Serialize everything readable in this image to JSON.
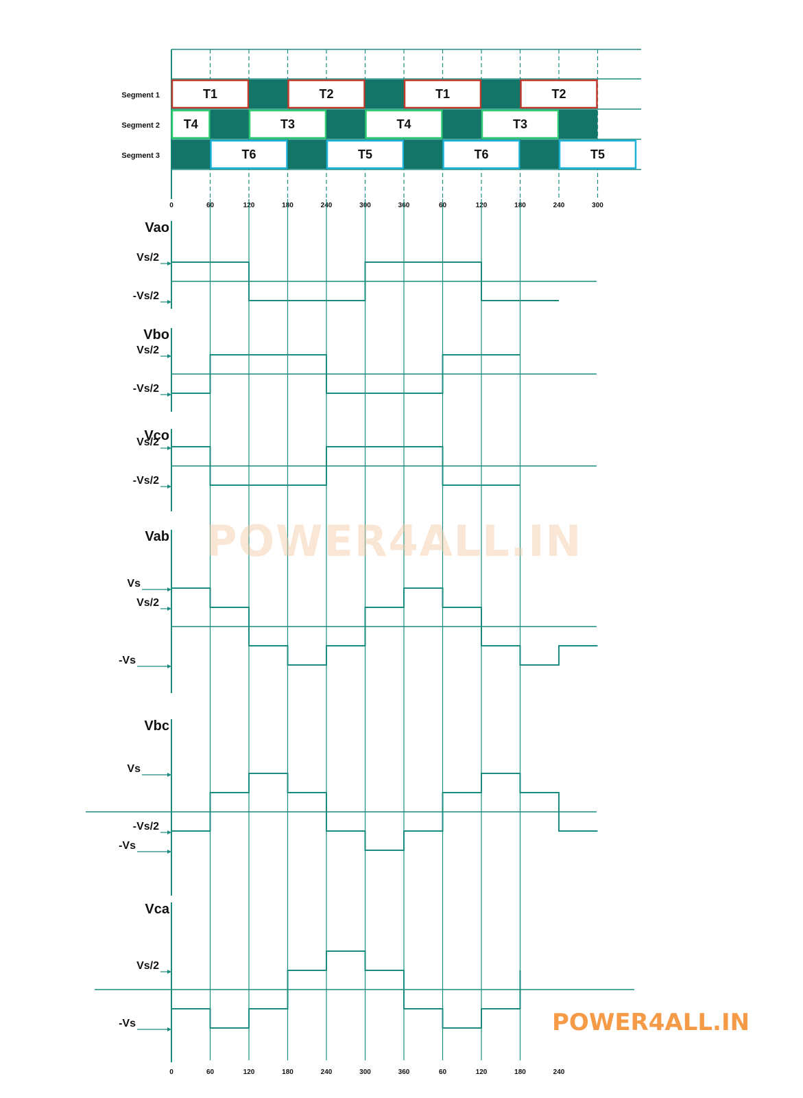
{
  "colors": {
    "line": "#1a8c7f",
    "fill": "#137567",
    "seg1_box": "#c0392b",
    "seg2_box": "#2ecc71",
    "seg3_box": "#1ab0d8",
    "text": "#111111"
  },
  "segments": [
    {
      "label": "Segment 1",
      "cells": [
        {
          "text": "T1",
          "from": 0,
          "to": 120
        },
        {
          "text": "",
          "from": 120,
          "to": 180
        },
        {
          "text": "T2",
          "from": 180,
          "to": 300
        },
        {
          "text": "",
          "from": 300,
          "to": 360
        },
        {
          "text": "T1",
          "from": 360,
          "to": 480
        },
        {
          "text": "",
          "from": 480,
          "to": 540
        },
        {
          "text": "T2",
          "from": 540,
          "to": 660
        }
      ]
    },
    {
      "label": "Segment 2",
      "cells": [
        {
          "text": "T4",
          "from": 0,
          "to": 60
        },
        {
          "text": "",
          "from": 60,
          "to": 120
        },
        {
          "text": "T3",
          "from": 120,
          "to": 240
        },
        {
          "text": "",
          "from": 240,
          "to": 300
        },
        {
          "text": "T4",
          "from": 300,
          "to": 420
        },
        {
          "text": "",
          "from": 420,
          "to": 480
        },
        {
          "text": "T3",
          "from": 480,
          "to": 600
        },
        {
          "text": "",
          "from": 600,
          "to": 660
        }
      ]
    },
    {
      "label": "Segment 3",
      "cells": [
        {
          "text": "",
          "from": 0,
          "to": 60
        },
        {
          "text": "T6",
          "from": 60,
          "to": 180
        },
        {
          "text": "",
          "from": 180,
          "to": 240
        },
        {
          "text": "T5",
          "from": 240,
          "to": 360
        },
        {
          "text": "",
          "from": 360,
          "to": 420
        },
        {
          "text": "T6",
          "from": 420,
          "to": 540
        },
        {
          "text": "",
          "from": 540,
          "to": 600
        },
        {
          "text": "T5",
          "from": 600,
          "to": 720
        }
      ]
    }
  ],
  "top_axis_ticks": [
    "0",
    "60",
    "120",
    "180",
    "240",
    "300",
    "360",
    "60",
    "120",
    "180",
    "240",
    "300"
  ],
  "bottom_axis_ticks": [
    "0",
    "60",
    "120",
    "180",
    "240",
    "300",
    "360",
    "60",
    "120",
    "180",
    "240"
  ],
  "waveforms": [
    {
      "name": "Vao",
      "levels": [
        {
          "label": "Vs/2",
          "value": 0.5
        },
        {
          "label": "-Vs/2",
          "value": -0.5
        }
      ],
      "steps": [
        0.5,
        0.5,
        -0.5,
        -0.5,
        -0.5,
        0.5,
        0.5,
        0.5,
        -0.5,
        -0.5,
        -0.5
      ],
      "end": 600
    },
    {
      "name": "Vbo",
      "levels": [
        {
          "label": "Vs/2",
          "value": 0.5
        },
        {
          "label": "-Vs/2",
          "value": -0.5
        }
      ],
      "steps": [
        -0.5,
        0.5,
        0.5,
        0.5,
        -0.5,
        -0.5,
        -0.5,
        0.5,
        0.5
      ],
      "end": 540
    },
    {
      "name": "Vco",
      "levels": [
        {
          "label": "Vs/2",
          "value": 0.5
        },
        {
          "label": "-Vs/2",
          "value": -0.5
        }
      ],
      "steps": [
        0.5,
        -0.5,
        -0.5,
        -0.5,
        0.5,
        0.5,
        0.5,
        -0.5,
        -0.5
      ],
      "end": 540
    },
    {
      "name": "Vab",
      "levels": [
        {
          "label": "Vs",
          "value": 1
        },
        {
          "label": "Vs/2",
          "value": 0.5
        },
        {
          "label": "-Vs",
          "value": -1
        }
      ],
      "steps": [
        1,
        0.5,
        -0.5,
        -1,
        -0.5,
        0.5,
        1,
        0.5,
        -0.5,
        -1,
        -0.5
      ],
      "end": 660
    },
    {
      "name": "Vbc",
      "levels": [
        {
          "label": "Vs",
          "value": 1
        },
        {
          "label": "-Vs/2",
          "value": -0.5
        },
        {
          "label": "-Vs",
          "value": -1
        }
      ],
      "steps": [
        -0.5,
        0.5,
        1,
        0.5,
        -0.5,
        -1,
        -0.5,
        0.5,
        1,
        0.5,
        -0.5
      ],
      "end": 660
    },
    {
      "name": "Vca",
      "levels": [
        {
          "label": "Vs/2",
          "value": 0.5
        },
        {
          "label": "-Vs",
          "value": -1
        }
      ],
      "steps": [
        -0.5,
        -1,
        -0.5,
        0.5,
        1,
        0.5,
        -0.5,
        -1,
        -0.5,
        0.5
      ],
      "end": 540
    }
  ],
  "watermark_center": "POWER4ALL.IN",
  "watermark_corner": "POWER4ALL.IN"
}
